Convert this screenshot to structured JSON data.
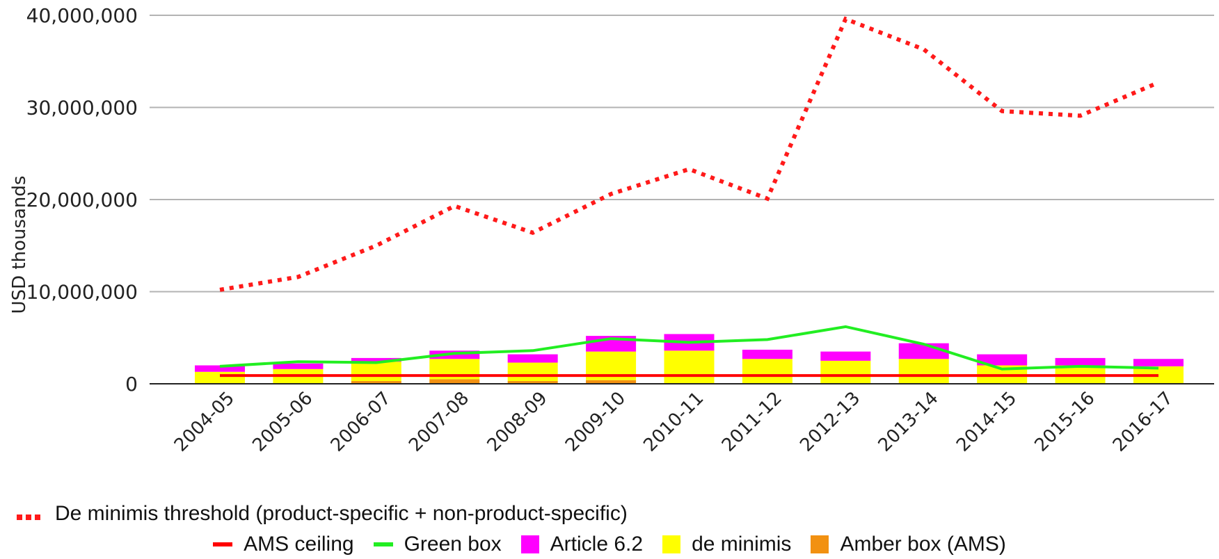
{
  "chart_data": {
    "type": "bar",
    "stacked": true,
    "categories": [
      "2004-05",
      "2005-06",
      "2006-07",
      "2007-08",
      "2008-09",
      "2009-10",
      "2010-11",
      "2011-12",
      "2012-13",
      "2013-14",
      "2014-15",
      "2015-16",
      "2016-17"
    ],
    "ylabel": "USD thousands",
    "xlabel": "",
    "ylim": [
      0,
      40000000
    ],
    "yticks": [
      0,
      10000000,
      20000000,
      30000000,
      40000000
    ],
    "ytick_labels": [
      "0",
      "10,000,000",
      "20,000,000",
      "30,000,000",
      "40,000,000"
    ],
    "grid": true,
    "bar_series": [
      {
        "name": "Amber box (AMS)",
        "color": "#f29111",
        "values": [
          0,
          0,
          300000,
          500000,
          300000,
          400000,
          0,
          0,
          0,
          0,
          0,
          0,
          0
        ]
      },
      {
        "name": "de minimis",
        "color": "#ffff00",
        "values": [
          1300000,
          1600000,
          2100000,
          2200000,
          2000000,
          3100000,
          3600000,
          2700000,
          2500000,
          2700000,
          2000000,
          2000000,
          1900000
        ]
      },
      {
        "name": "Article 6.2",
        "color": "#ff00ff",
        "values": [
          700000,
          600000,
          400000,
          900000,
          900000,
          1700000,
          1800000,
          1000000,
          1000000,
          1700000,
          1200000,
          800000,
          800000
        ]
      }
    ],
    "line_series": [
      {
        "name": "De minimis threshold (product-specific + non-product-specific)",
        "color": "#ff1a1a",
        "style": "dotted",
        "values": [
          10200000,
          11600000,
          15000000,
          19300000,
          16400000,
          20600000,
          23300000,
          20100000,
          39600000,
          36300000,
          29600000,
          29100000,
          32700000
        ]
      },
      {
        "name": "AMS ceiling",
        "color": "#ff0000",
        "style": "solid",
        "values": [
          900000,
          900000,
          900000,
          900000,
          900000,
          900000,
          900000,
          900000,
          900000,
          900000,
          900000,
          900000,
          900000
        ]
      },
      {
        "name": "Green box",
        "color": "#22ee22",
        "style": "solid",
        "values": [
          1900000,
          2400000,
          2300000,
          3300000,
          3600000,
          4900000,
          4500000,
          4800000,
          6200000,
          4300000,
          1600000,
          1900000,
          1700000
        ]
      }
    ],
    "legend": {
      "position": "bottom",
      "row1": [
        {
          "label": "De minimis threshold (product-specific + non-product-specific)",
          "marker": "dots",
          "color": "#ff1a1a"
        }
      ],
      "row2": [
        {
          "label": "AMS ceiling",
          "marker": "line",
          "color": "#ff0000"
        },
        {
          "label": "Green box",
          "marker": "line",
          "color": "#22ee22"
        },
        {
          "label": "Article 6.2",
          "marker": "box",
          "color": "#ff00ff"
        },
        {
          "label": "de minimis",
          "marker": "box",
          "color": "#ffff00"
        },
        {
          "label": "Amber box (AMS)",
          "marker": "box",
          "color": "#f29111"
        }
      ]
    }
  }
}
